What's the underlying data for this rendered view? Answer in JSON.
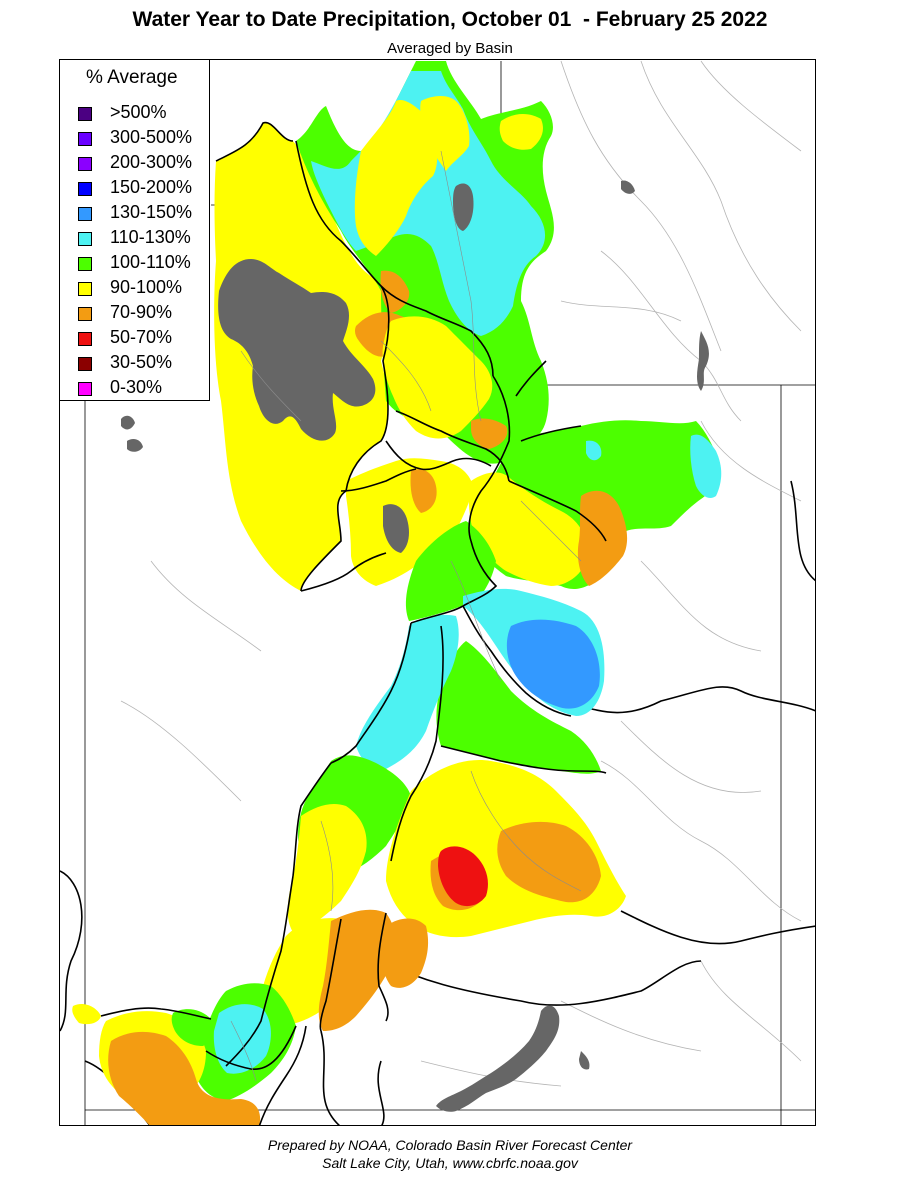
{
  "title": "Water Year to Date Precipitation, October 01  - February 25 2022",
  "subtitle": "Averaged by Basin",
  "legend": {
    "title": "% Average",
    "items": [
      {
        "label": ">500%",
        "color": "#4b0082"
      },
      {
        "label": "300-500%",
        "color": "#6a00ff"
      },
      {
        "label": "200-300%",
        "color": "#8b00ff"
      },
      {
        "label": "150-200%",
        "color": "#0000ff"
      },
      {
        "label": "130-150%",
        "color": "#3399ff"
      },
      {
        "label": "110-130%",
        "color": "#4df2f2"
      },
      {
        "label": "100-110%",
        "color": "#4cff00"
      },
      {
        "label": "90-100%",
        "color": "#ffff00"
      },
      {
        "label": "70-90%",
        "color": "#f39c12"
      },
      {
        "label": "50-70%",
        "color": "#ee1111"
      },
      {
        "label": "30-50%",
        "color": "#8b0000"
      },
      {
        "label": "0-30%",
        "color": "#ff00ff"
      }
    ]
  },
  "map": {
    "no_data_color": "#666666",
    "boundary_color": "#000000",
    "river_color": "#aaaaaa"
  },
  "credit": {
    "line1": "Prepared by NOAA, Colorado Basin River Forecast Center",
    "line2": "Salt Lake City, Utah, www.cbrfc.noaa.gov"
  }
}
